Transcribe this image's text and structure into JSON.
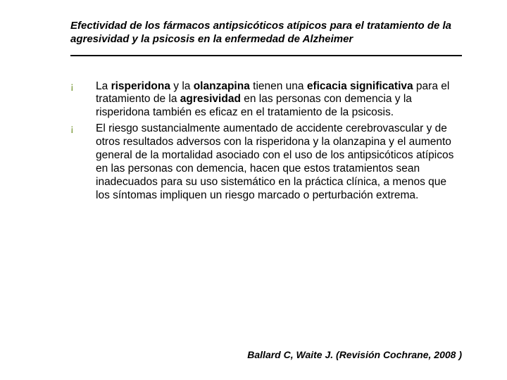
{
  "title": "Efectividad de los fármacos antipsicóticos atípicos para el tratamiento de la agresividad y la psicosis en la enfermedad de Alzheimer",
  "bullet_glyph": "¡",
  "colors": {
    "bullet": "#6b8e23",
    "text": "#000000",
    "background": "#ffffff",
    "rule": "#000000"
  },
  "bullets": [
    {
      "segments": [
        {
          "t": "La ",
          "b": false
        },
        {
          "t": "risperidona",
          "b": true
        },
        {
          "t": " y la ",
          "b": false
        },
        {
          "t": "olanzapina",
          "b": true
        },
        {
          "t": " tienen una ",
          "b": false
        },
        {
          "t": "eficacia significativa",
          "b": true
        },
        {
          "t": " para el tratamiento de la ",
          "b": false
        },
        {
          "t": "agresividad",
          "b": true
        },
        {
          "t": " en las personas con demencia y la risperidona también es eficaz en el tratamiento de la psicosis.",
          "b": false
        }
      ]
    },
    {
      "segments": [
        {
          "t": "El riesgo sustancialmente aumentado de accidente cerebrovascular y de otros resultados adversos con la risperidona y la olanzapina y el aumento general de la mortalidad asociado con el uso de los antipsicóticos atípicos en las personas con demencia, hacen que estos tratamientos sean inadecuados para su uso sistemático en la práctica clínica, a menos que los síntomas impliquen un riesgo marcado o perturbación extrema.",
          "b": false
        }
      ]
    }
  ],
  "citation": "Ballard C, Waite J. (Revisión Cochrane, 2008 )"
}
